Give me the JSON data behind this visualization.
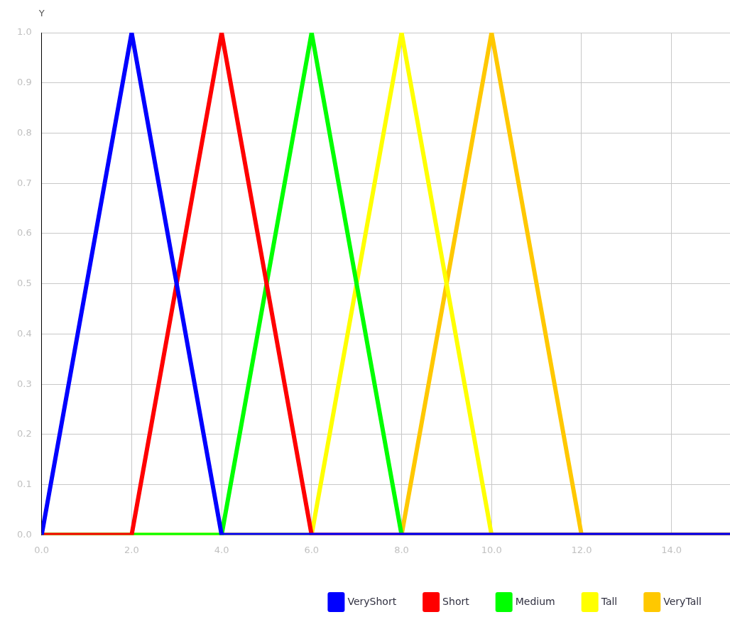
{
  "chart_data": {
    "type": "line",
    "ylabel": "Y",
    "xlim": [
      0,
      15.3
    ],
    "xticks": [
      {
        "value": 0,
        "label": "0.0"
      },
      {
        "value": 2,
        "label": "2.0"
      },
      {
        "value": 4,
        "label": "4.0"
      },
      {
        "value": 6,
        "label": "6.0"
      },
      {
        "value": 8,
        "label": "8.0"
      },
      {
        "value": 10,
        "label": "10.0"
      },
      {
        "value": 12,
        "label": "12.0"
      },
      {
        "value": 14,
        "label": "14.0"
      }
    ],
    "ylim": [
      0,
      1
    ],
    "yticks": [
      {
        "value": 0,
        "label": "0.0"
      },
      {
        "value": 0.1,
        "label": "0.1"
      },
      {
        "value": 0.2,
        "label": "0.2"
      },
      {
        "value": 0.3,
        "label": "0.3"
      },
      {
        "value": 0.4,
        "label": "0.4"
      },
      {
        "value": 0.5,
        "label": "0.5"
      },
      {
        "value": 0.6,
        "label": "0.6"
      },
      {
        "value": 0.7,
        "label": "0.7"
      },
      {
        "value": 0.8,
        "label": "0.8"
      },
      {
        "value": 0.9,
        "label": "0.9"
      },
      {
        "value": 1,
        "label": "1.0"
      }
    ],
    "grid": true,
    "legend": "bottom",
    "marker": "none",
    "line_style": "solid",
    "series": [
      {
        "name": "VeryShort",
        "color": "#0000ff",
        "x": [
          0,
          2,
          4,
          15.3
        ],
        "values": [
          0,
          1,
          0,
          0
        ]
      },
      {
        "name": "Short",
        "color": "#ff0000",
        "x": [
          0,
          2,
          4,
          6,
          15.3
        ],
        "values": [
          0,
          0,
          1,
          0,
          0
        ]
      },
      {
        "name": "Medium",
        "color": "#00ff00",
        "x": [
          0,
          4,
          6,
          8,
          15.3
        ],
        "values": [
          0,
          0,
          1,
          0,
          0
        ]
      },
      {
        "name": "Tall",
        "color": "#ffff00",
        "x": [
          0,
          6,
          8,
          10,
          15.3
        ],
        "values": [
          0,
          0,
          1,
          0,
          0
        ]
      },
      {
        "name": "VeryTall",
        "color": "#ffc800",
        "x": [
          0,
          8,
          10,
          12,
          15.3
        ],
        "values": [
          0,
          0,
          1,
          0,
          0
        ]
      }
    ]
  }
}
